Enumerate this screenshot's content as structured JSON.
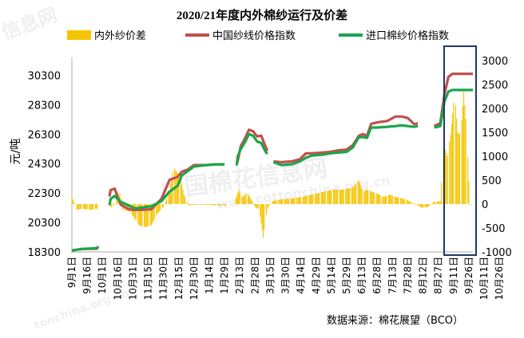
{
  "chart_data": {
    "type": "line",
    "title": "2020/21年度内外棉纱运行及价差",
    "ylabel_left": "元/吨",
    "source": "数据来源：棉花展望（BCO）",
    "watermarks": [
      "中国棉花信息网",
      "www.cottonchina.org.cn",
      "信息网",
      "tonchina.org.cn"
    ],
    "left_axis": {
      "ylim": [
        18300,
        31300
      ],
      "ticks": [
        18300,
        20300,
        22300,
        24300,
        26300,
        28300,
        30300
      ]
    },
    "right_axis": {
      "ylim": [
        -1000,
        3000
      ],
      "ticks": [
        -1000,
        -500,
        0,
        500,
        1000,
        1500,
        2000,
        2500,
        3000
      ]
    },
    "x_tick_labels": [
      "9月1日",
      "9月16日",
      "10月1日",
      "10月16日",
      "10月31日",
      "11月15日",
      "11月30日",
      "12月15日",
      "12月30日",
      "1月14日",
      "1月29日",
      "2月13日",
      "2月28日",
      "3月15日",
      "3月30日",
      "4月14日",
      "4月29日",
      "5月14日",
      "5月29日",
      "6月13日",
      "6月28日",
      "7月13日",
      "7月28日",
      "8月12日",
      "8月27日",
      "9月11日",
      "9月26日",
      "10月11日",
      "10月26日"
    ],
    "highlight_box": {
      "from_label": "10月6日",
      "to_label": "10月30日"
    },
    "legend_position": "top",
    "colors": {
      "spread": "#f5c400",
      "china_yarn": "#c0504d",
      "import_yarn": "#1aa64a",
      "highlight": "#1f3864"
    },
    "series": [
      {
        "name": "内外纱价差",
        "axis": "right",
        "kind": "bar",
        "values": [
          [
            0,
            150
          ],
          [
            5,
            -120
          ],
          [
            10,
            -100
          ],
          [
            20,
            -120
          ],
          [
            24,
            -100
          ],
          [
            30,
            -80
          ],
          [
            34,
            -60
          ],
          [
            40,
            -60
          ],
          [
            43,
            20
          ],
          [
            46,
            350
          ],
          [
            50,
            -120
          ],
          [
            56,
            -150
          ],
          [
            60,
            -250
          ],
          [
            66,
            -450
          ],
          [
            72,
            -480
          ],
          [
            78,
            -450
          ],
          [
            84,
            -200
          ],
          [
            90,
            -60
          ],
          [
            96,
            300
          ],
          [
            100,
            800
          ],
          [
            102,
            700
          ],
          [
            106,
            600
          ],
          [
            110,
            200
          ],
          [
            115,
            -30
          ],
          [
            125,
            -10
          ],
          [
            135,
            -20
          ],
          [
            150,
            -30
          ],
          [
            160,
            60
          ],
          [
            164,
            300
          ],
          [
            168,
            150
          ],
          [
            172,
            250
          ],
          [
            176,
            100
          ],
          [
            180,
            -60
          ],
          [
            184,
            -120
          ],
          [
            186,
            -400
          ],
          [
            188,
            -700
          ],
          [
            190,
            -350
          ],
          [
            192,
            -100
          ],
          [
            196,
            60
          ],
          [
            206,
            100
          ],
          [
            216,
            120
          ],
          [
            226,
            150
          ],
          [
            236,
            200
          ],
          [
            246,
            250
          ],
          [
            256,
            300
          ],
          [
            266,
            300
          ],
          [
            276,
            350
          ],
          [
            282,
            500
          ],
          [
            286,
            250
          ],
          [
            290,
            300
          ],
          [
            296,
            250
          ],
          [
            302,
            200
          ],
          [
            306,
            150
          ],
          [
            312,
            200
          ],
          [
            318,
            150
          ],
          [
            328,
            100
          ],
          [
            336,
            10
          ],
          [
            344,
            -80
          ],
          [
            350,
            -60
          ],
          [
            356,
            50
          ],
          [
            362,
            60
          ],
          [
            363,
            450
          ],
          [
            366,
            1200
          ],
          [
            369,
            1000
          ],
          [
            372,
            1450
          ],
          [
            376,
            2350
          ],
          [
            379,
            1500
          ],
          [
            382,
            1450
          ],
          [
            385,
            2350
          ],
          [
            388,
            1500
          ],
          [
            391,
            -10
          ],
          [
            393,
            0
          ]
        ]
      },
      {
        "name": "中国纱线价格指数",
        "axis": "left",
        "kind": "line",
        "values": [
          [
            0,
            18400
          ],
          [
            10,
            18500
          ],
          [
            24,
            18520
          ],
          [
            30,
            19000
          ],
          [
            38,
            22500
          ],
          [
            42,
            22600
          ],
          [
            48,
            21500
          ],
          [
            56,
            21200
          ],
          [
            62,
            21150
          ],
          [
            72,
            21170
          ],
          [
            78,
            21200
          ],
          [
            88,
            21900
          ],
          [
            96,
            23200
          ],
          [
            104,
            23400
          ],
          [
            108,
            23750
          ],
          [
            114,
            23900
          ],
          [
            120,
            24200
          ],
          [
            132,
            24200
          ],
          [
            142,
            24250
          ],
          [
            150,
            24250
          ],
          [
            162,
            24250
          ],
          [
            163,
            24500
          ],
          [
            166,
            25500
          ],
          [
            170,
            26000
          ],
          [
            174,
            26600
          ],
          [
            178,
            26500
          ],
          [
            182,
            26150
          ],
          [
            186,
            26200
          ],
          [
            190,
            25500
          ],
          [
            195,
            24650
          ],
          [
            198,
            24450
          ],
          [
            206,
            24400
          ],
          [
            216,
            24450
          ],
          [
            224,
            24600
          ],
          [
            230,
            25000
          ],
          [
            236,
            25000
          ],
          [
            246,
            25050
          ],
          [
            254,
            25100
          ],
          [
            262,
            25200
          ],
          [
            270,
            25250
          ],
          [
            276,
            25550
          ],
          [
            282,
            26200
          ],
          [
            286,
            26300
          ],
          [
            290,
            26200
          ],
          [
            294,
            27000
          ],
          [
            300,
            27100
          ],
          [
            310,
            27200
          ],
          [
            318,
            27500
          ],
          [
            324,
            27500
          ],
          [
            330,
            27400
          ],
          [
            336,
            27000
          ],
          [
            344,
            27050
          ],
          [
            352,
            26900
          ],
          [
            356,
            26850
          ],
          [
            362,
            27050
          ],
          [
            366,
            29000
          ],
          [
            370,
            30200
          ],
          [
            374,
            30400
          ],
          [
            380,
            30400
          ],
          [
            390,
            30400
          ],
          [
            394,
            30400
          ]
        ]
      },
      {
        "name": "进口棉纱价格指数",
        "axis": "left",
        "kind": "line",
        "values": [
          [
            0,
            18400
          ],
          [
            10,
            18500
          ],
          [
            24,
            18550
          ],
          [
            30,
            18500
          ],
          [
            38,
            21900
          ],
          [
            42,
            22100
          ],
          [
            48,
            21700
          ],
          [
            56,
            21450
          ],
          [
            62,
            21250
          ],
          [
            72,
            21350
          ],
          [
            78,
            21400
          ],
          [
            88,
            21750
          ],
          [
            96,
            22400
          ],
          [
            104,
            22800
          ],
          [
            108,
            23500
          ],
          [
            114,
            23800
          ],
          [
            120,
            24100
          ],
          [
            132,
            24200
          ],
          [
            142,
            24250
          ],
          [
            150,
            24250
          ],
          [
            162,
            24250
          ],
          [
            163,
            24800
          ],
          [
            166,
            25300
          ],
          [
            170,
            25750
          ],
          [
            174,
            26300
          ],
          [
            178,
            26200
          ],
          [
            182,
            25800
          ],
          [
            186,
            25700
          ],
          [
            190,
            25150
          ],
          [
            195,
            24650
          ],
          [
            198,
            24400
          ],
          [
            206,
            24200
          ],
          [
            216,
            24250
          ],
          [
            224,
            24450
          ],
          [
            230,
            24700
          ],
          [
            236,
            24850
          ],
          [
            246,
            24900
          ],
          [
            254,
            25000
          ],
          [
            262,
            25050
          ],
          [
            270,
            25100
          ],
          [
            276,
            25400
          ],
          [
            282,
            26100
          ],
          [
            286,
            26100
          ],
          [
            290,
            26050
          ],
          [
            294,
            26750
          ],
          [
            300,
            26750
          ],
          [
            310,
            26800
          ],
          [
            318,
            26850
          ],
          [
            324,
            26900
          ],
          [
            330,
            26850
          ],
          [
            336,
            26800
          ],
          [
            344,
            26900
          ],
          [
            352,
            26800
          ],
          [
            356,
            26750
          ],
          [
            362,
            26850
          ],
          [
            366,
            28500
          ],
          [
            370,
            29200
          ],
          [
            374,
            29300
          ],
          [
            380,
            29300
          ],
          [
            390,
            29300
          ],
          [
            394,
            29300
          ]
        ]
      }
    ]
  }
}
